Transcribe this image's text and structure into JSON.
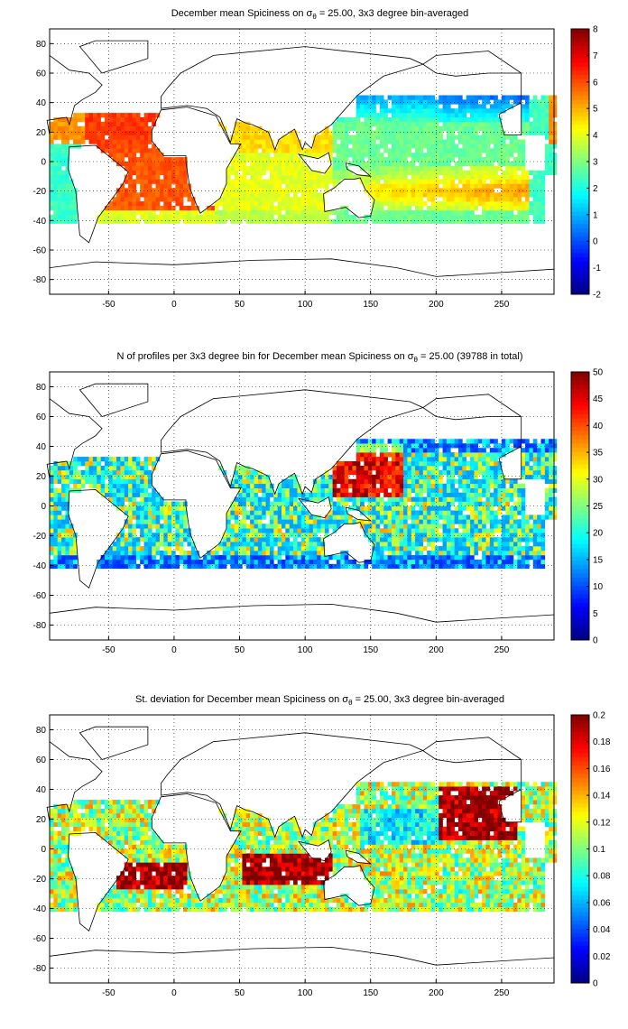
{
  "colors": {
    "land_outline": "#000000",
    "no_data_background": "#ffffff",
    "grid": "#000000",
    "colormap": "jet"
  },
  "chart_data": [
    {
      "type": "heatmap",
      "title_pre": "December mean Spiciness on σ",
      "title_sub": "θ",
      "title_post": " = 25.00, 3x3 degree bin-averaged",
      "xlim": [
        -95,
        290
      ],
      "ylim": [
        -90,
        90
      ],
      "xticks": [
        -50,
        0,
        50,
        100,
        150,
        200,
        250
      ],
      "yticks": [
        -80,
        -60,
        -40,
        -20,
        0,
        20,
        40,
        60,
        80
      ],
      "grid": true,
      "colorbar": {
        "min": -2,
        "max": 8,
        "ticks": [
          -2,
          -1,
          0,
          1,
          2,
          3,
          4,
          5,
          6,
          7,
          8
        ]
      },
      "field": "spice"
    },
    {
      "type": "heatmap",
      "title_pre": "N of profiles per 3x3 degree bin for December mean Spiciness on σ",
      "title_sub": "θ",
      "title_post": " = 25.00 (39788 in total)",
      "total_profiles": 39788,
      "xlim": [
        -95,
        290
      ],
      "ylim": [
        -90,
        90
      ],
      "xticks": [
        -50,
        0,
        50,
        100,
        150,
        200,
        250
      ],
      "yticks": [
        -80,
        -60,
        -40,
        -20,
        0,
        20,
        40,
        60,
        80
      ],
      "grid": true,
      "colorbar": {
        "min": 0,
        "max": 50,
        "ticks": [
          0,
          5,
          10,
          15,
          20,
          25,
          30,
          35,
          40,
          45,
          50
        ]
      },
      "field": "count"
    },
    {
      "type": "heatmap",
      "title_pre": "St. deviation for December mean Spiciness on σ",
      "title_sub": "θ",
      "title_post": " = 25.00, 3x3 degree bin-averaged",
      "xlim": [
        -95,
        290
      ],
      "ylim": [
        -90,
        90
      ],
      "xticks": [
        -50,
        0,
        50,
        100,
        150,
        200,
        250
      ],
      "yticks": [
        -80,
        -60,
        -40,
        -20,
        0,
        20,
        40,
        60,
        80
      ],
      "grid": true,
      "colorbar": {
        "min": 0,
        "max": 0.2,
        "ticks": [
          0,
          0.02,
          0.04,
          0.06,
          0.08,
          0.1,
          0.12,
          0.14,
          0.16,
          0.18,
          0.2
        ]
      },
      "field": "std"
    }
  ]
}
